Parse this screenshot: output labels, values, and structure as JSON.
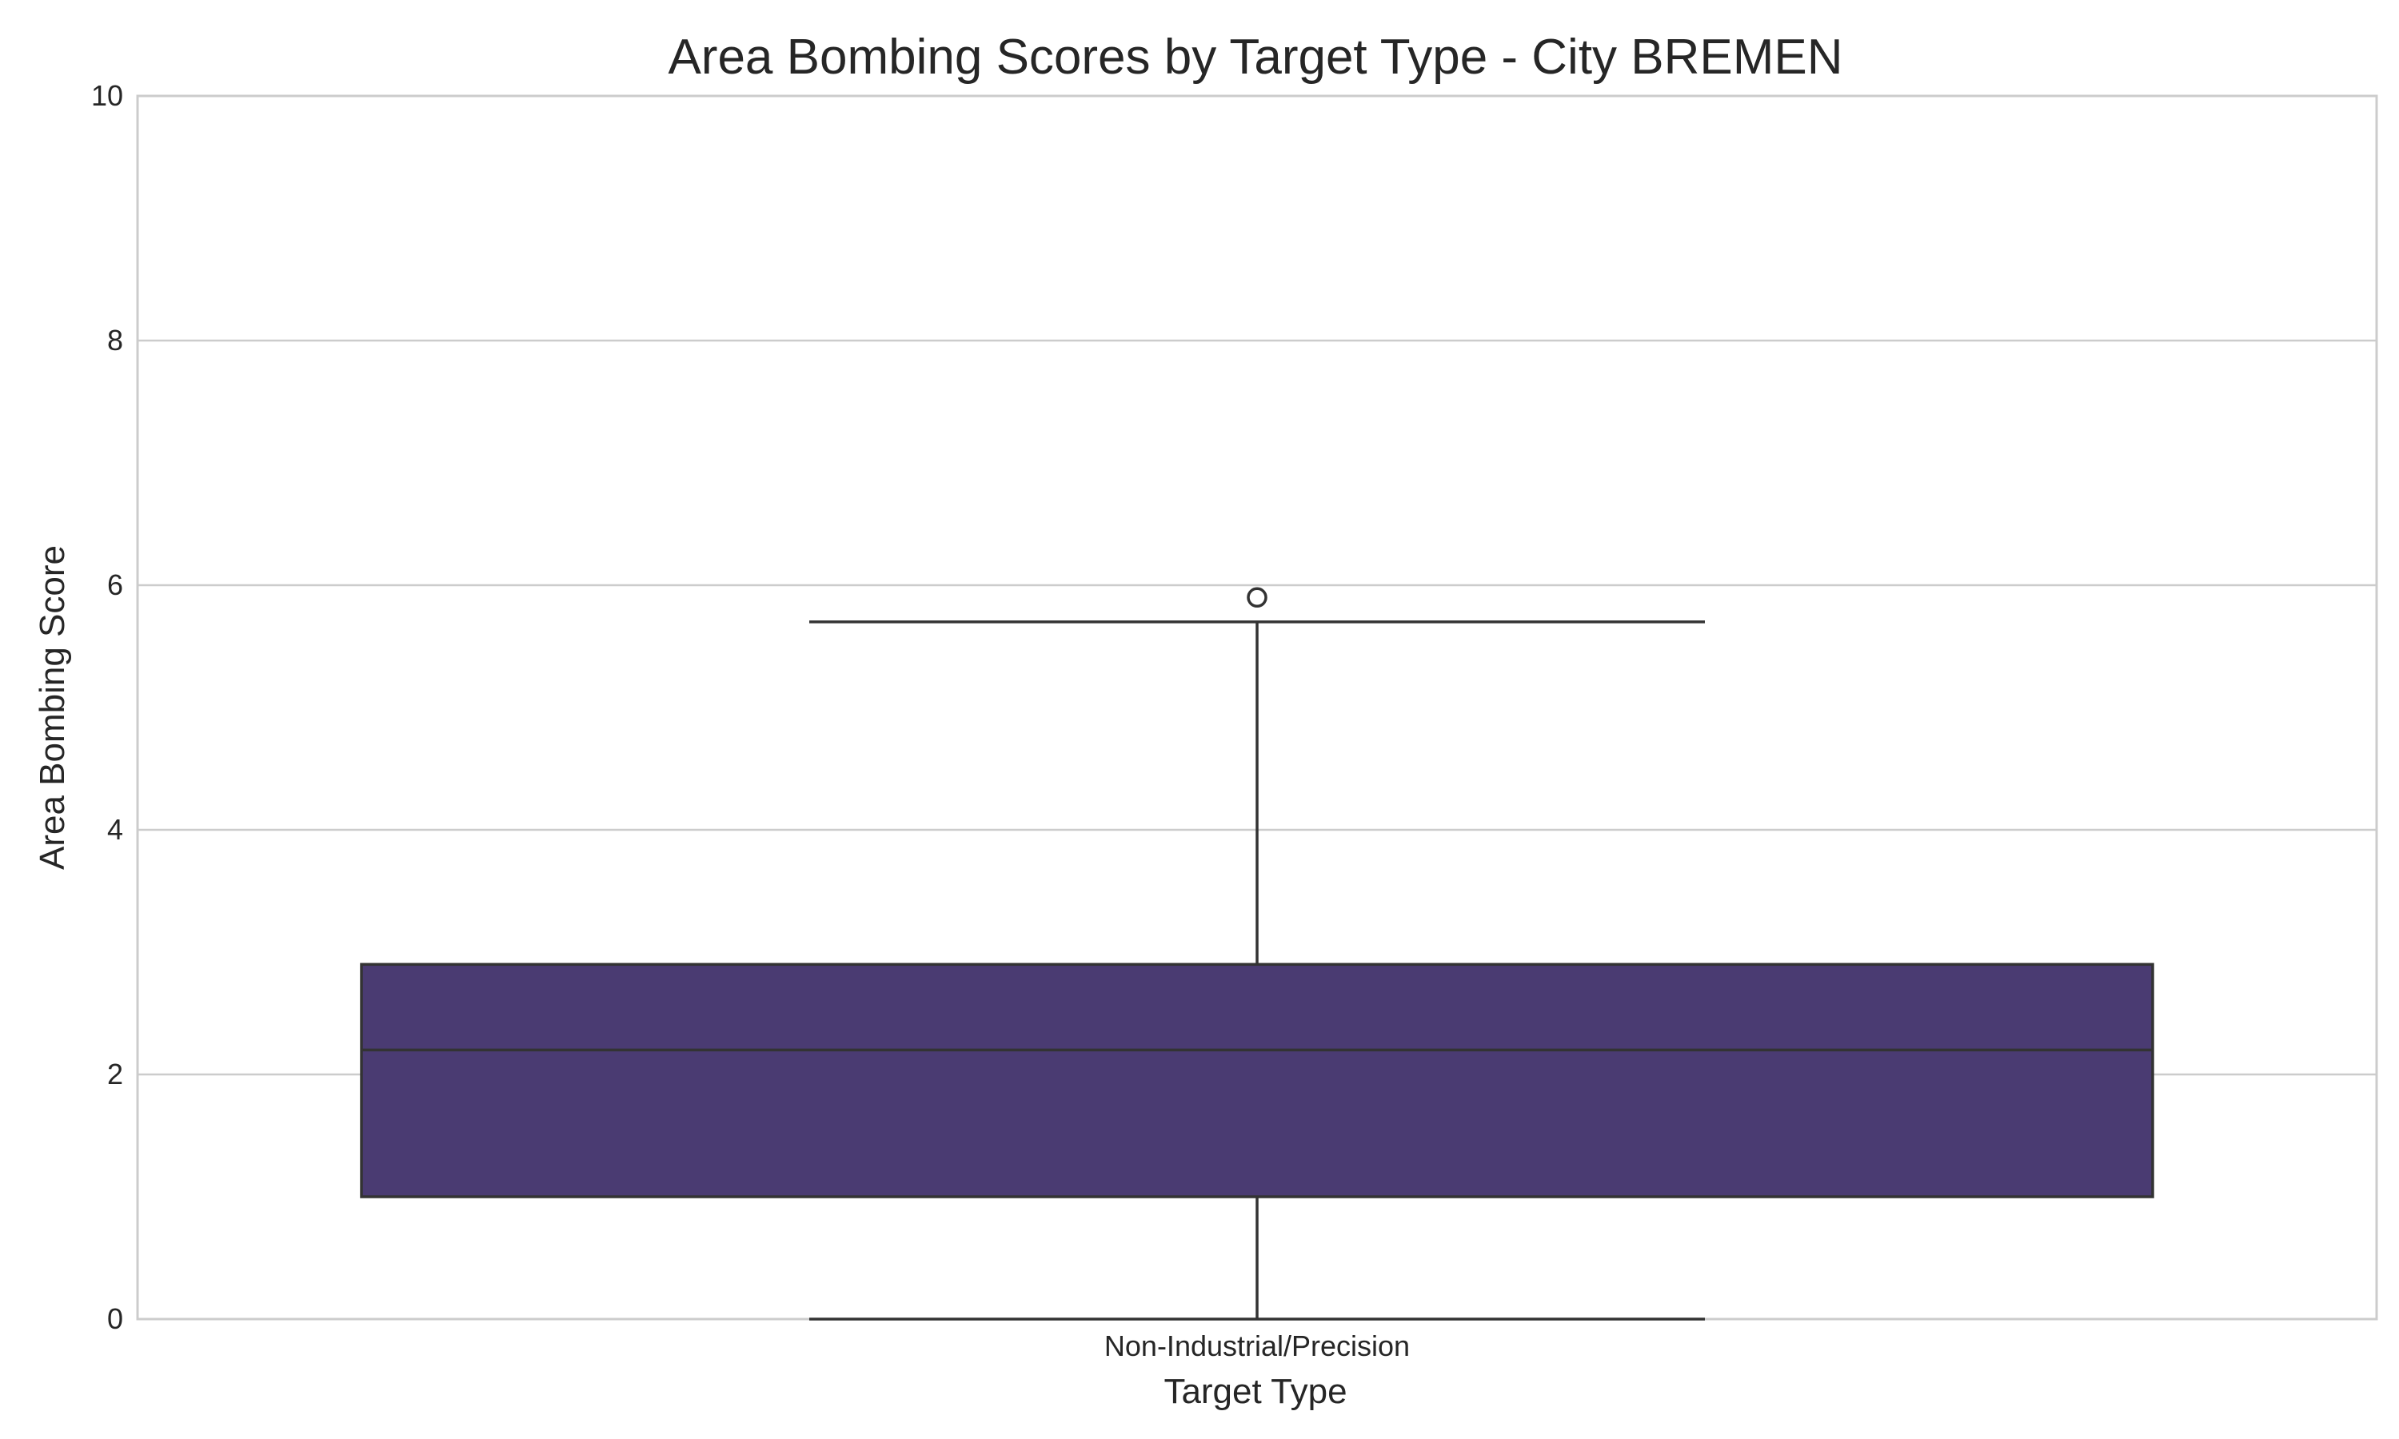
{
  "chart_data": {
    "type": "box",
    "title": "Area Bombing Scores by Target Type - City BREMEN",
    "xlabel": "Target Type",
    "ylabel": "Area Bombing Score",
    "ylim": [
      0,
      10
    ],
    "yticks": [
      0,
      2,
      4,
      6,
      8,
      10
    ],
    "grid": true,
    "categories": [
      "Non-Industrial/Precision"
    ],
    "boxes": [
      {
        "category": "Non-Industrial/Precision",
        "whisker_low": 0.0,
        "q1": 1.0,
        "median": 2.2,
        "q3": 2.9,
        "whisker_high": 5.7,
        "outliers": [
          5.9
        ]
      }
    ],
    "colors": {
      "box_fill": "#4a3b72",
      "box_edge": "#333333",
      "grid": "#cccccc",
      "spine": "#cccccc"
    }
  }
}
